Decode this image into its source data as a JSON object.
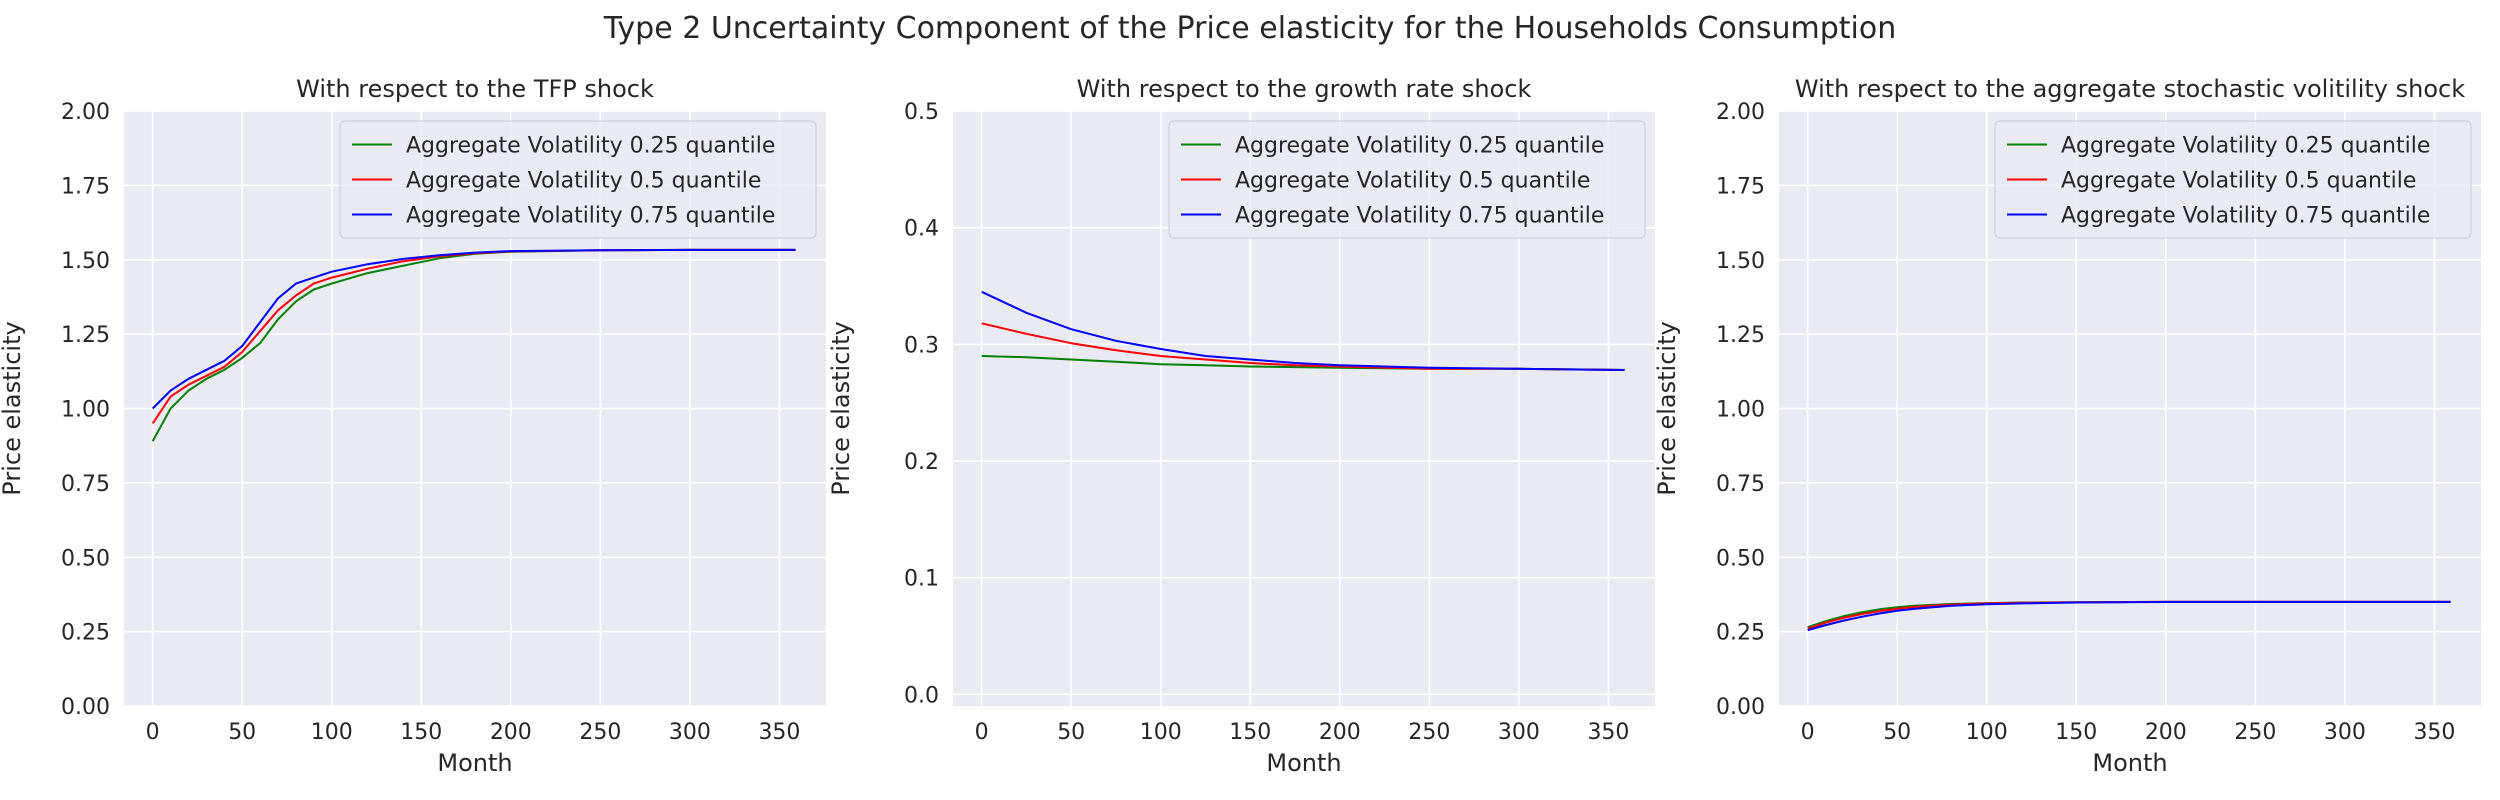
{
  "figure": {
    "suptitle": "Type 2 Uncertainty Component of the Price elasticity for the Households Consumption"
  },
  "chart_data": [
    {
      "type": "line",
      "title": "With respect to the TFP shock",
      "xlabel": "Month",
      "ylabel": "Price elasticity",
      "xlim": [
        -16,
        376
      ],
      "ylim": [
        0.0,
        2.0
      ],
      "xticks": [
        "0",
        "50",
        "100",
        "150",
        "200",
        "250",
        "300",
        "350"
      ],
      "yticks": [
        "0.00",
        "0.25",
        "0.50",
        "0.75",
        "1.00",
        "1.25",
        "1.50",
        "1.75",
        "2.00"
      ],
      "grid": true,
      "legend_position": "top-right",
      "x": [
        0,
        10,
        20,
        30,
        40,
        50,
        60,
        70,
        80,
        90,
        100,
        120,
        140,
        160,
        180,
        200,
        250,
        300,
        359
      ],
      "series": [
        {
          "name": "Aggregate Volatility 0.25 quantile",
          "color": "#008000",
          "values": [
            0.89,
            1.0,
            1.06,
            1.1,
            1.13,
            1.17,
            1.22,
            1.3,
            1.36,
            1.4,
            1.42,
            1.455,
            1.48,
            1.505,
            1.52,
            1.527,
            1.532,
            1.533,
            1.533
          ]
        },
        {
          "name": "Aggregate Volatility 0.5 quantile",
          "color": "#ff0000",
          "values": [
            0.95,
            1.04,
            1.08,
            1.11,
            1.14,
            1.19,
            1.26,
            1.33,
            1.38,
            1.42,
            1.44,
            1.47,
            1.495,
            1.512,
            1.522,
            1.528,
            1.532,
            1.533,
            1.533
          ]
        },
        {
          "name": "Aggregate Volatility 0.75 quantile",
          "color": "#0000ff",
          "values": [
            1.0,
            1.06,
            1.1,
            1.13,
            1.16,
            1.21,
            1.29,
            1.37,
            1.42,
            1.44,
            1.46,
            1.485,
            1.503,
            1.515,
            1.524,
            1.529,
            1.532,
            1.533,
            1.533
          ]
        }
      ]
    },
    {
      "type": "line",
      "title": "With respect to the growth rate shock",
      "xlabel": "Month",
      "ylabel": "Price elasticity",
      "xlim": [
        -16,
        376
      ],
      "ylim": [
        -0.01,
        0.5
      ],
      "xticks": [
        "0",
        "50",
        "100",
        "150",
        "200",
        "250",
        "300",
        "350"
      ],
      "yticks": [
        "0.0",
        "0.1",
        "0.2",
        "0.3",
        "0.4",
        "0.5"
      ],
      "grid": true,
      "legend_position": "top-right",
      "x": [
        0,
        25,
        50,
        75,
        100,
        125,
        150,
        175,
        200,
        250,
        300,
        359
      ],
      "series": [
        {
          "name": "Aggregate Volatility 0.25 quantile",
          "color": "#008000",
          "values": [
            0.29,
            0.289,
            0.287,
            0.285,
            0.283,
            0.282,
            0.281,
            0.2805,
            0.28,
            0.279,
            0.279,
            0.278
          ]
        },
        {
          "name": "Aggregate Volatility 0.5 quantile",
          "color": "#ff0000",
          "values": [
            0.318,
            0.309,
            0.301,
            0.295,
            0.29,
            0.287,
            0.284,
            0.282,
            0.281,
            0.279,
            0.279,
            0.278
          ]
        },
        {
          "name": "Aggregate Volatility 0.75 quantile",
          "color": "#0000ff",
          "values": [
            0.345,
            0.327,
            0.313,
            0.303,
            0.296,
            0.29,
            0.287,
            0.284,
            0.282,
            0.28,
            0.279,
            0.278
          ]
        }
      ]
    },
    {
      "type": "line",
      "title": "With respect to the aggregate stochastic volitility shock",
      "xlabel": "Month",
      "ylabel": "Price elasticity",
      "xlim": [
        -16,
        376
      ],
      "ylim": [
        0.0,
        2.0
      ],
      "xticks": [
        "0",
        "50",
        "100",
        "150",
        "200",
        "250",
        "300",
        "350"
      ],
      "yticks": [
        "0.00",
        "0.25",
        "0.50",
        "0.75",
        "1.00",
        "1.25",
        "1.50",
        "1.75",
        "2.00"
      ],
      "grid": true,
      "legend_position": "top-right",
      "x": [
        0,
        10,
        20,
        30,
        40,
        50,
        60,
        80,
        100,
        120,
        150,
        200,
        250,
        300,
        359
      ],
      "series": [
        {
          "name": "Aggregate Volatility 0.25 quantile",
          "color": "#008000",
          "values": [
            0.265,
            0.285,
            0.302,
            0.315,
            0.325,
            0.332,
            0.337,
            0.343,
            0.346,
            0.348,
            0.349,
            0.35,
            0.35,
            0.35,
            0.35
          ]
        },
        {
          "name": "Aggregate Volatility 0.5 quantile",
          "color": "#ff0000",
          "values": [
            0.26,
            0.28,
            0.296,
            0.309,
            0.319,
            0.327,
            0.333,
            0.341,
            0.345,
            0.347,
            0.349,
            0.35,
            0.35,
            0.35,
            0.35
          ]
        },
        {
          "name": "Aggregate Volatility 0.75 quantile",
          "color": "#0000ff",
          "values": [
            0.255,
            0.272,
            0.287,
            0.3,
            0.311,
            0.32,
            0.327,
            0.337,
            0.342,
            0.345,
            0.348,
            0.35,
            0.35,
            0.35,
            0.35
          ]
        }
      ]
    }
  ]
}
